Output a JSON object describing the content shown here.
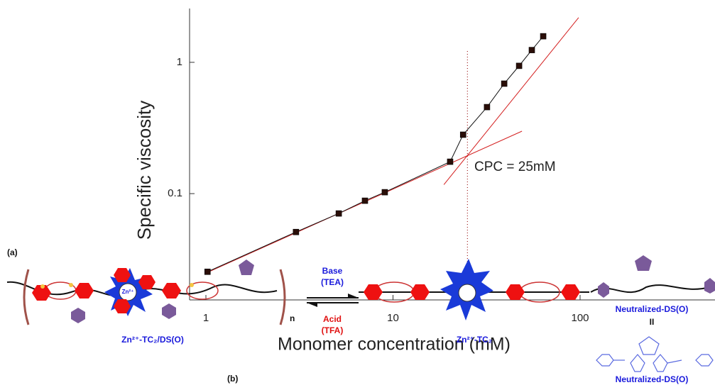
{
  "chart_data": {
    "type": "scatter",
    "log_x": true,
    "log_y": true,
    "xlabel": "Monomer concentration (mM)",
    "ylabel": "Specific viscosity",
    "annotation": "CPC = 25mM",
    "cpc": 25,
    "xlim": [
      0.818,
      526
    ],
    "ylim": [
      0.0155,
      2.57
    ],
    "xticks": [
      1,
      10,
      100
    ],
    "yticks": [
      0.1,
      1
    ],
    "series": [
      {
        "color": "#2a0e08",
        "x": [
          1.02,
          3.03,
          5.13,
          7.08,
          9.04,
          20.2,
          23.7,
          31.8,
          39.3,
          47.2,
          55.2,
          63.5
        ],
        "values": [
          0.0254,
          0.051,
          0.0706,
          0.0883,
          0.1025,
          0.175,
          0.281,
          0.456,
          0.688,
          0.94,
          1.24,
          1.58
        ]
      }
    ],
    "fits": [
      {
        "color": "#d42020",
        "x": [
          1,
          48.9
        ],
        "values": [
          0.0248,
          0.299
        ]
      },
      {
        "color": "#d42020",
        "x": [
          18.7,
          98.2
        ],
        "values": [
          0.117,
          2.19
        ]
      }
    ]
  },
  "scheme": {
    "label_a": "(a)",
    "label_b": "(b)",
    "base": "Base",
    "base_reagent": "(TEA)",
    "acid": "Acid",
    "acid_reagent": "(TFA)",
    "repeat": "n",
    "polymer": "Zn²⁺-TC₂/DS(O)",
    "complex": "Zn²⁺-TC₂",
    "star_ion": "Zn²⁺",
    "neutral_top": "Neutralized-DS(O)",
    "equals": "II",
    "neutral_bottom": "Neutralized-DS(O)"
  }
}
